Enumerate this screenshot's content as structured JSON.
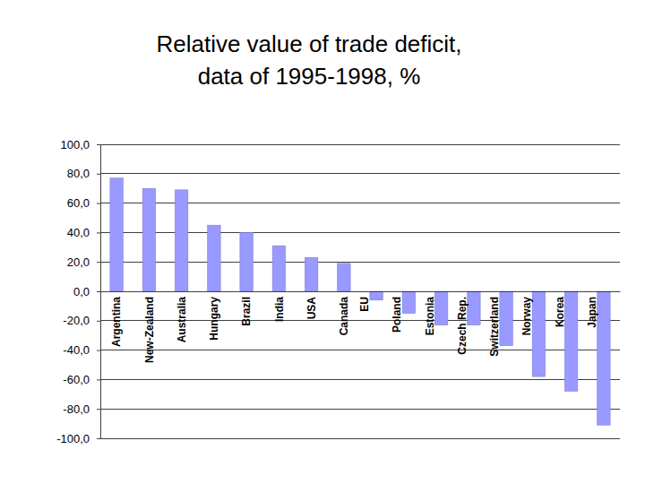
{
  "chart_data": {
    "type": "bar",
    "title": "Relative value of trade deficit,\ndata of 1995-1998, %",
    "categories": [
      "Argentina",
      "New-Zealand",
      "Australia",
      "Hungary",
      "Brazil",
      "India",
      "USA",
      "Canada",
      "EU",
      "Poland",
      "Estonia",
      "Czech Rep.",
      "Switzerland",
      "Norway",
      "Korea",
      "Japan"
    ],
    "values": [
      77,
      70,
      69,
      45,
      40,
      31,
      23,
      19,
      -6,
      -15,
      -23,
      -23,
      -37,
      -58,
      -68,
      -91
    ],
    "color": "#9999ff",
    "ylim": [
      -100,
      100
    ],
    "yticks": [
      {
        "value": 100,
        "label": "100,0"
      },
      {
        "value": 80,
        "label": "80,0"
      },
      {
        "value": 60,
        "label": "60,0"
      },
      {
        "value": 40,
        "label": "40,0"
      },
      {
        "value": 20,
        "label": "20,0"
      },
      {
        "value": 0,
        "label": "0,0"
      },
      {
        "value": -20,
        "label": "-20,0"
      },
      {
        "value": -40,
        "label": "-40,0"
      },
      {
        "value": -60,
        "label": "-60,0"
      },
      {
        "value": -80,
        "label": "-80,0"
      },
      {
        "value": -100,
        "label": "-100,0"
      }
    ],
    "grid": true
  }
}
